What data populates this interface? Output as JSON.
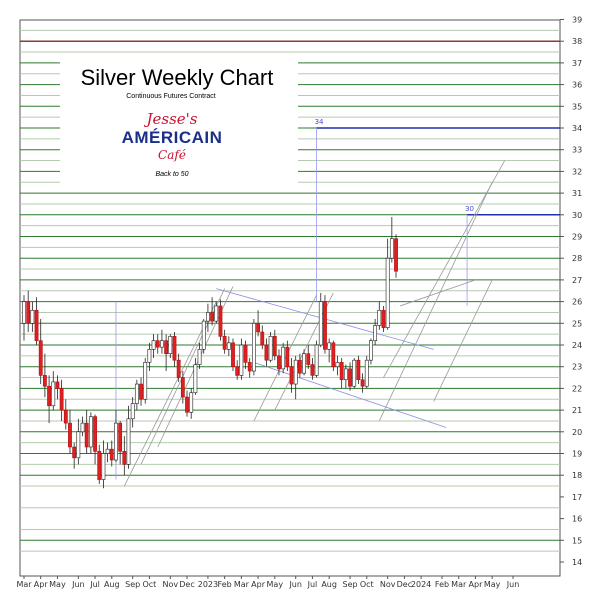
{
  "chart_data": {
    "type": "candlestick",
    "title": "Silver Weekly Chart",
    "subtitle": "Continuous Futures Contract",
    "brand": {
      "line1": "Jesse's",
      "line2": "AMÉRICAIN",
      "line3": "Café",
      "tagline": "Back to 50"
    },
    "ylim": [
      14,
      39
    ],
    "y_ticks": [
      14,
      15,
      16,
      17,
      18,
      19,
      20,
      21,
      22,
      23,
      24,
      25,
      26,
      27,
      28,
      29,
      30,
      31,
      32,
      33,
      34,
      35,
      36,
      37,
      38,
      39
    ],
    "y_tick_labels": [
      "14",
      "15",
      "16",
      "17",
      "18",
      "19",
      "20",
      "21",
      "22",
      "23",
      "24",
      "25",
      "26",
      "27",
      "28",
      "29",
      "30",
      "31",
      "32",
      "33",
      "34",
      "35",
      "36",
      "37",
      "38",
      "39"
    ],
    "x_tick_labels": [
      "Mar",
      "Apr",
      "May",
      "Jun",
      "Jul",
      "Aug",
      "Sep",
      "Oct",
      "Nov",
      "Dec",
      "2023",
      "Feb",
      "Mar",
      "Apr",
      "May",
      "Jun",
      "Jul",
      "Aug",
      "Sep",
      "Oct",
      "Nov",
      "Dec",
      "2024",
      "Feb",
      "Mar",
      "Apr",
      "May",
      "Jun"
    ],
    "x_tick_week_index": [
      0,
      4,
      8,
      13,
      17,
      21,
      26,
      30,
      35,
      39,
      44,
      48,
      52,
      56,
      60,
      65,
      69,
      73,
      78,
      82,
      87,
      91,
      95,
      100,
      104,
      108,
      112,
      117
    ],
    "reference_levels": {
      "dark_red": [
        38
      ],
      "blue": [
        34,
        30
      ],
      "green": [
        15,
        18,
        19,
        20,
        21,
        22,
        23,
        24,
        25,
        26,
        27,
        28,
        29,
        30,
        31,
        32,
        33,
        34,
        35,
        36,
        37
      ]
    },
    "annotations": [
      {
        "text": "34",
        "value": 34
      },
      {
        "text": "30",
        "value": 30
      }
    ],
    "ohlc": [
      [
        0,
        25.0,
        26.3,
        24.2,
        26.0
      ],
      [
        1,
        26.0,
        26.5,
        24.6,
        25.0
      ],
      [
        2,
        25.0,
        26.0,
        24.6,
        25.6
      ],
      [
        3,
        25.6,
        26.2,
        24.0,
        24.2
      ],
      [
        4,
        24.2,
        25.2,
        22.2,
        22.6
      ],
      [
        5,
        22.6,
        23.6,
        21.6,
        22.1
      ],
      [
        6,
        22.1,
        22.6,
        20.4,
        21.2
      ],
      [
        7,
        21.2,
        22.8,
        21.0,
        22.3
      ],
      [
        8,
        22.3,
        22.6,
        21.5,
        22.0
      ],
      [
        9,
        22.0,
        22.4,
        20.5,
        21.0
      ],
      [
        10,
        21.0,
        21.5,
        20.1,
        20.4
      ],
      [
        11,
        20.4,
        21.0,
        19.0,
        19.3
      ],
      [
        12,
        19.3,
        19.5,
        18.3,
        18.8
      ],
      [
        13,
        18.8,
        20.6,
        18.5,
        20.0
      ],
      [
        14,
        20.0,
        20.7,
        19.8,
        20.4
      ],
      [
        15,
        20.4,
        21.0,
        19.0,
        19.3
      ],
      [
        16,
        19.3,
        20.9,
        19.0,
        20.7
      ],
      [
        17,
        20.7,
        20.8,
        18.5,
        19.1
      ],
      [
        18,
        19.1,
        19.4,
        17.6,
        17.8
      ],
      [
        19,
        17.8,
        19.6,
        17.4,
        19.0
      ],
      [
        20,
        19.0,
        19.5,
        18.6,
        19.2
      ],
      [
        21,
        19.2,
        19.6,
        18.4,
        18.7
      ],
      [
        22,
        18.7,
        21.0,
        18.6,
        20.4
      ],
      [
        23,
        20.4,
        20.5,
        18.5,
        19.1
      ],
      [
        24,
        19.1,
        19.8,
        18.0,
        18.5
      ],
      [
        25,
        18.5,
        21.2,
        18.3,
        20.6
      ],
      [
        26,
        20.6,
        21.6,
        20.2,
        21.3
      ],
      [
        27,
        21.3,
        22.4,
        21.0,
        22.2
      ],
      [
        28,
        22.2,
        22.5,
        21.2,
        21.5
      ],
      [
        29,
        21.5,
        23.4,
        21.3,
        23.2
      ],
      [
        30,
        23.2,
        24.1,
        22.8,
        23.8
      ],
      [
        31,
        23.8,
        24.5,
        23.4,
        24.2
      ],
      [
        32,
        24.2,
        24.5,
        23.6,
        23.9
      ],
      [
        33,
        23.9,
        24.7,
        23.6,
        24.2
      ],
      [
        34,
        24.2,
        24.5,
        22.8,
        23.6
      ],
      [
        35,
        23.6,
        24.5,
        23.4,
        24.4
      ],
      [
        36,
        24.4,
        24.6,
        23.0,
        23.3
      ],
      [
        37,
        23.3,
        23.6,
        22.3,
        22.5
      ],
      [
        38,
        22.5,
        22.8,
        21.3,
        21.6
      ],
      [
        39,
        21.6,
        21.9,
        20.7,
        20.9
      ],
      [
        40,
        20.9,
        22.0,
        20.6,
        21.8
      ],
      [
        41,
        21.8,
        23.4,
        21.7,
        23.1
      ],
      [
        42,
        23.1,
        24.1,
        22.9,
        23.8
      ],
      [
        43,
        23.8,
        25.2,
        23.6,
        25.1
      ],
      [
        44,
        25.1,
        25.9,
        24.6,
        25.5
      ],
      [
        45,
        25.5,
        26.2,
        24.9,
        25.1
      ],
      [
        46,
        25.1,
        26.0,
        25.0,
        25.8
      ],
      [
        47,
        25.8,
        26.1,
        24.2,
        24.4
      ],
      [
        48,
        24.4,
        24.7,
        23.6,
        23.8
      ],
      [
        49,
        23.8,
        24.4,
        23.5,
        24.1
      ],
      [
        50,
        24.1,
        24.3,
        22.8,
        23.0
      ],
      [
        51,
        23.0,
        23.3,
        22.4,
        22.6
      ],
      [
        52,
        22.6,
        24.3,
        22.4,
        24.0
      ],
      [
        53,
        24.0,
        24.2,
        22.9,
        23.2
      ],
      [
        54,
        23.2,
        23.4,
        22.5,
        22.8
      ],
      [
        55,
        22.8,
        25.2,
        22.6,
        25.0
      ],
      [
        56,
        25.0,
        25.6,
        24.4,
        24.6
      ],
      [
        57,
        24.6,
        24.9,
        23.8,
        24.0
      ],
      [
        58,
        24.0,
        24.3,
        23.0,
        23.3
      ],
      [
        59,
        23.3,
        24.6,
        23.2,
        24.4
      ],
      [
        60,
        24.4,
        24.7,
        23.3,
        23.5
      ],
      [
        61,
        23.5,
        23.8,
        22.6,
        22.9
      ],
      [
        62,
        22.9,
        24.1,
        22.7,
        23.9
      ],
      [
        63,
        23.9,
        24.2,
        22.8,
        23.0
      ],
      [
        64,
        23.0,
        23.4,
        21.8,
        22.2
      ],
      [
        65,
        22.2,
        23.5,
        21.5,
        23.3
      ],
      [
        66,
        23.3,
        23.6,
        22.5,
        22.7
      ],
      [
        67,
        22.7,
        23.8,
        22.6,
        23.6
      ],
      [
        68,
        23.6,
        24.0,
        22.9,
        23.1
      ],
      [
        69,
        23.1,
        23.4,
        22.4,
        22.6
      ],
      [
        70,
        22.6,
        24.2,
        22.5,
        24.0
      ],
      [
        71,
        24.0,
        26.4,
        23.9,
        26.0
      ],
      [
        72,
        26.0,
        26.3,
        23.6,
        23.8
      ],
      [
        73,
        23.8,
        24.3,
        23.2,
        24.1
      ],
      [
        74,
        24.1,
        24.2,
        22.8,
        23.0
      ],
      [
        75,
        23.0,
        23.5,
        22.6,
        23.2
      ],
      [
        76,
        23.2,
        23.4,
        22.0,
        22.4
      ],
      [
        77,
        22.4,
        23.1,
        22.0,
        22.9
      ],
      [
        78,
        22.9,
        23.2,
        21.9,
        22.1
      ],
      [
        79,
        22.1,
        23.4,
        22.0,
        23.3
      ],
      [
        80,
        23.3,
        23.5,
        22.2,
        22.4
      ],
      [
        81,
        22.4,
        22.7,
        21.8,
        22.1
      ],
      [
        82,
        22.1,
        23.5,
        22.0,
        23.3
      ],
      [
        83,
        23.3,
        24.3,
        23.1,
        24.2
      ],
      [
        84,
        24.2,
        25.2,
        24.0,
        24.9
      ],
      [
        85,
        24.9,
        26.0,
        24.7,
        25.6
      ],
      [
        86,
        25.6,
        25.8,
        24.6,
        24.8
      ],
      [
        87,
        24.8,
        28.9,
        24.7,
        28.0
      ],
      [
        88,
        28.0,
        29.9,
        27.8,
        28.9
      ],
      [
        89,
        28.9,
        29.1,
        27.1,
        27.4
      ]
    ]
  }
}
